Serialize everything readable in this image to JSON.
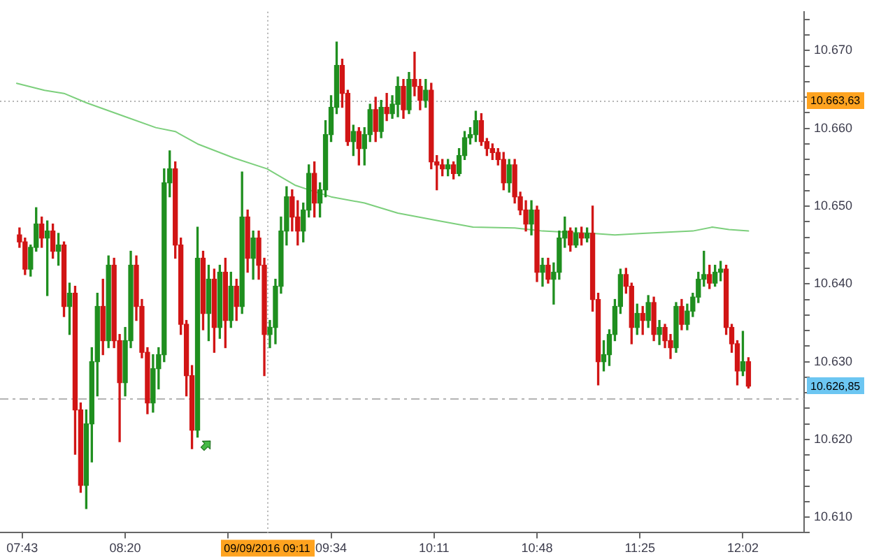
{
  "chart_data": {
    "type": "candlestick",
    "series": [
      {
        "x": [
          "2016-09-09T07:42",
          "2016-09-09T07:44",
          "2016-09-09T07:46",
          "2016-09-09T07:48",
          "2016-09-09T07:50",
          "2016-09-09T07:52",
          "2016-09-09T07:54",
          "2016-09-09T07:56",
          "2016-09-09T07:58",
          "2016-09-09T08:00",
          "2016-09-09T08:02",
          "2016-09-09T08:04",
          "2016-09-09T08:06",
          "2016-09-09T08:08",
          "2016-09-09T08:10",
          "2016-09-09T08:12",
          "2016-09-09T08:14",
          "2016-09-09T08:16",
          "2016-09-09T08:18",
          "2016-09-09T08:20",
          "2016-09-09T08:22",
          "2016-09-09T08:24",
          "2016-09-09T08:26",
          "2016-09-09T08:28",
          "2016-09-09T08:30",
          "2016-09-09T08:32",
          "2016-09-09T08:34",
          "2016-09-09T08:36",
          "2016-09-09T08:38",
          "2016-09-09T08:40",
          "2016-09-09T08:42",
          "2016-09-09T08:44",
          "2016-09-09T08:46",
          "2016-09-09T08:48",
          "2016-09-09T08:50",
          "2016-09-09T08:52",
          "2016-09-09T08:54",
          "2016-09-09T08:56",
          "2016-09-09T08:58",
          "2016-09-09T09:00",
          "2016-09-09T09:02",
          "2016-09-09T09:04",
          "2016-09-09T09:06",
          "2016-09-09T09:08",
          "2016-09-09T09:10",
          "2016-09-09T09:12",
          "2016-09-09T09:14",
          "2016-09-09T09:16",
          "2016-09-09T09:18",
          "2016-09-09T09:20",
          "2016-09-09T09:22",
          "2016-09-09T09:24",
          "2016-09-09T09:26",
          "2016-09-09T09:28",
          "2016-09-09T09:30",
          "2016-09-09T09:32",
          "2016-09-09T09:34",
          "2016-09-09T09:36",
          "2016-09-09T09:38",
          "2016-09-09T09:40",
          "2016-09-09T09:42",
          "2016-09-09T09:44",
          "2016-09-09T09:46",
          "2016-09-09T09:48",
          "2016-09-09T09:50",
          "2016-09-09T09:52",
          "2016-09-09T09:54",
          "2016-09-09T09:56",
          "2016-09-09T09:58",
          "2016-09-09T10:00",
          "2016-09-09T10:02",
          "2016-09-09T10:04",
          "2016-09-09T10:06",
          "2016-09-09T10:08",
          "2016-09-09T10:10",
          "2016-09-09T10:12",
          "2016-09-09T10:14",
          "2016-09-09T10:16",
          "2016-09-09T10:18",
          "2016-09-09T10:20",
          "2016-09-09T10:22",
          "2016-09-09T10:24",
          "2016-09-09T10:26",
          "2016-09-09T10:28",
          "2016-09-09T10:30",
          "2016-09-09T10:32",
          "2016-09-09T10:34",
          "2016-09-09T10:36",
          "2016-09-09T10:38",
          "2016-09-09T10:40",
          "2016-09-09T10:42",
          "2016-09-09T10:44",
          "2016-09-09T10:46",
          "2016-09-09T10:48",
          "2016-09-09T10:50",
          "2016-09-09T10:52",
          "2016-09-09T10:54",
          "2016-09-09T10:56",
          "2016-09-09T10:58",
          "2016-09-09T11:00",
          "2016-09-09T11:02",
          "2016-09-09T11:04",
          "2016-09-09T11:06",
          "2016-09-09T11:08",
          "2016-09-09T11:10",
          "2016-09-09T11:12",
          "2016-09-09T11:14",
          "2016-09-09T11:16",
          "2016-09-09T11:18",
          "2016-09-09T11:20",
          "2016-09-09T11:22",
          "2016-09-09T11:24",
          "2016-09-09T11:26",
          "2016-09-09T11:28",
          "2016-09-09T11:30",
          "2016-09-09T11:32",
          "2016-09-09T11:34",
          "2016-09-09T11:36",
          "2016-09-09T11:38",
          "2016-09-09T11:40",
          "2016-09-09T11:42",
          "2016-09-09T11:44",
          "2016-09-09T11:46",
          "2016-09-09T11:48",
          "2016-09-09T11:50",
          "2016-09-09T11:52",
          "2016-09-09T11:54",
          "2016-09-09T11:56",
          "2016-09-09T11:58",
          "2016-09-09T12:00",
          "2016-09-09T12:02",
          "2016-09-09T12:04"
        ],
        "ohlc": [
          [
            10646.3,
            10647.2,
            10644.7,
            10645.4
          ],
          [
            10645.4,
            10645.9,
            10641.2,
            10641.9
          ],
          [
            10641.9,
            10645.0,
            10641.0,
            10644.7
          ],
          [
            10644.7,
            10649.8,
            10644.2,
            10647.7
          ],
          [
            10647.7,
            10648.6,
            10644.7,
            10645.9
          ],
          [
            10645.9,
            10648.1,
            10638.5,
            10646.8
          ],
          [
            10646.8,
            10647.7,
            10643.3,
            10644.2
          ],
          [
            10644.2,
            10646.5,
            10642.4,
            10645.0
          ],
          [
            10645.0,
            10645.4,
            10635.8,
            10637.1
          ],
          [
            10637.1,
            10640.1,
            10633.5,
            10638.8
          ],
          [
            10638.8,
            10639.7,
            10618.1,
            10623.8
          ],
          [
            10623.8,
            10624.7,
            10613.2,
            10614.1
          ],
          [
            10614.1,
            10623.8,
            10611.1,
            10622.0
          ],
          [
            10622.0,
            10631.8,
            10617.1,
            10630.0
          ],
          [
            10630.0,
            10638.8,
            10625.6,
            10637.1
          ],
          [
            10637.1,
            10640.6,
            10630.9,
            10632.7
          ],
          [
            10632.7,
            10643.6,
            10631.8,
            10642.4
          ],
          [
            10642.4,
            10643.3,
            10631.8,
            10632.7
          ],
          [
            10632.7,
            10633.5,
            10619.7,
            10627.3
          ],
          [
            10627.3,
            10634.4,
            10625.6,
            10632.7
          ],
          [
            10632.7,
            10644.2,
            10631.8,
            10642.4
          ],
          [
            10642.4,
            10643.6,
            10635.3,
            10637.1
          ],
          [
            10637.1,
            10638.0,
            10630.5,
            10631.2
          ],
          [
            10631.2,
            10631.8,
            10623.3,
            10624.7
          ],
          [
            10624.7,
            10630.9,
            10623.5,
            10629.1
          ],
          [
            10629.1,
            10631.8,
            10626.5,
            10630.9
          ],
          [
            10630.9,
            10654.8,
            10630.0,
            10653.0
          ],
          [
            10653.0,
            10657.1,
            10651.2,
            10654.8
          ],
          [
            10654.8,
            10655.7,
            10643.3,
            10645.0
          ],
          [
            10645.0,
            10645.9,
            10633.5,
            10634.8
          ],
          [
            10634.8,
            10635.3,
            10625.6,
            10628.2
          ],
          [
            10628.2,
            10629.5,
            10618.8,
            10621.2
          ],
          [
            10621.2,
            10647.3,
            10620.3,
            10643.3
          ],
          [
            10643.3,
            10644.2,
            10634.1,
            10636.2
          ],
          [
            10636.2,
            10642.4,
            10632.7,
            10640.6
          ],
          [
            10640.6,
            10641.9,
            10631.2,
            10634.4
          ],
          [
            10634.4,
            10642.4,
            10633.0,
            10641.5
          ],
          [
            10641.5,
            10643.3,
            10631.8,
            10635.3
          ],
          [
            10635.3,
            10641.5,
            10634.4,
            10639.7
          ],
          [
            10639.7,
            10640.6,
            10635.3,
            10637.1
          ],
          [
            10637.1,
            10654.4,
            10636.2,
            10648.6
          ],
          [
            10648.6,
            10649.5,
            10641.5,
            10643.3
          ],
          [
            10643.3,
            10646.8,
            10640.6,
            10645.9
          ],
          [
            10645.9,
            10646.8,
            10640.6,
            10642.4
          ],
          [
            10642.4,
            10643.3,
            10628.2,
            10633.5
          ],
          [
            10633.5,
            10635.3,
            10631.8,
            10634.4
          ],
          [
            10634.4,
            10640.6,
            10632.3,
            10639.7
          ],
          [
            10639.7,
            10648.6,
            10638.8,
            10646.8
          ],
          [
            10646.8,
            10652.5,
            10645.0,
            10651.2
          ],
          [
            10651.2,
            10652.1,
            10646.8,
            10648.6
          ],
          [
            10648.6,
            10650.7,
            10645.0,
            10646.8
          ],
          [
            10646.8,
            10650.4,
            10645.4,
            10649.5
          ],
          [
            10649.5,
            10655.3,
            10648.6,
            10654.2
          ],
          [
            10654.2,
            10655.7,
            10648.6,
            10650.4
          ],
          [
            10650.4,
            10653.0,
            10648.6,
            10652.1
          ],
          [
            10652.1,
            10661.0,
            10651.2,
            10659.2
          ],
          [
            10659.2,
            10664.2,
            10658.3,
            10662.7
          ],
          [
            10662.7,
            10671.1,
            10661.9,
            10668.1
          ],
          [
            10668.1,
            10668.9,
            10662.7,
            10664.5
          ],
          [
            10664.5,
            10664.9,
            10657.8,
            10658.3
          ],
          [
            10658.3,
            10660.4,
            10656.5,
            10659.6
          ],
          [
            10659.6,
            10660.1,
            10655.3,
            10657.4
          ],
          [
            10657.4,
            10660.1,
            10655.3,
            10659.2
          ],
          [
            10659.2,
            10663.1,
            10658.3,
            10662.4
          ],
          [
            10662.4,
            10664.0,
            10658.3,
            10659.6
          ],
          [
            10659.6,
            10663.6,
            10658.8,
            10662.7
          ],
          [
            10662.7,
            10664.5,
            10661.0,
            10661.9
          ],
          [
            10661.9,
            10664.2,
            10661.3,
            10663.1
          ],
          [
            10663.1,
            10666.6,
            10661.5,
            10665.4
          ],
          [
            10665.4,
            10666.3,
            10661.3,
            10662.4
          ],
          [
            10662.4,
            10667.2,
            10661.9,
            10666.3
          ],
          [
            10666.3,
            10669.8,
            10664.2,
            10665.4
          ],
          [
            10665.4,
            10666.3,
            10662.4,
            10663.6
          ],
          [
            10663.6,
            10666.3,
            10662.7,
            10664.9
          ],
          [
            10664.9,
            10665.8,
            10654.8,
            10655.7
          ],
          [
            10655.7,
            10656.5,
            10652.1,
            10655.3
          ],
          [
            10655.3,
            10656.0,
            10653.9,
            10654.8
          ],
          [
            10654.8,
            10656.0,
            10653.9,
            10655.3
          ],
          [
            10655.3,
            10655.7,
            10653.5,
            10654.2
          ],
          [
            10654.2,
            10657.4,
            10653.9,
            10656.5
          ],
          [
            10656.5,
            10659.6,
            10656.0,
            10658.8
          ],
          [
            10658.8,
            10660.1,
            10658.0,
            10659.2
          ],
          [
            10659.2,
            10662.2,
            10658.3,
            10661.0
          ],
          [
            10661.0,
            10661.9,
            10657.8,
            10658.3
          ],
          [
            10658.3,
            10658.7,
            10656.5,
            10657.4
          ],
          [
            10657.4,
            10658.0,
            10656.0,
            10656.9
          ],
          [
            10656.9,
            10657.4,
            10655.3,
            10656.0
          ],
          [
            10656.0,
            10656.9,
            10652.1,
            10653.0
          ],
          [
            10653.0,
            10656.0,
            10651.8,
            10655.3
          ],
          [
            10655.3,
            10656.0,
            10650.4,
            10651.2
          ],
          [
            10651.2,
            10651.8,
            10648.9,
            10649.5
          ],
          [
            10649.5,
            10650.7,
            10646.8,
            10647.7
          ],
          [
            10647.7,
            10650.7,
            10646.3,
            10649.5
          ],
          [
            10649.5,
            10650.0,
            10640.3,
            10641.5
          ],
          [
            10641.5,
            10643.3,
            10639.7,
            10642.4
          ],
          [
            10642.4,
            10643.3,
            10640.1,
            10640.6
          ],
          [
            10640.6,
            10642.7,
            10637.4,
            10641.5
          ],
          [
            10641.5,
            10646.8,
            10640.6,
            10645.9
          ],
          [
            10645.9,
            10648.6,
            10644.7,
            10646.8
          ],
          [
            10646.8,
            10647.2,
            10644.2,
            10645.0
          ],
          [
            10645.0,
            10647.2,
            10644.7,
            10646.5
          ],
          [
            10646.5,
            10647.3,
            10645.0,
            10645.9
          ],
          [
            10645.9,
            10647.2,
            10645.4,
            10646.5
          ],
          [
            10646.5,
            10650.0,
            10636.5,
            10638.0
          ],
          [
            10638.0,
            10638.8,
            10627.0,
            10630.0
          ],
          [
            10630.0,
            10632.7,
            10628.8,
            10630.9
          ],
          [
            10630.9,
            10634.1,
            10629.5,
            10633.5
          ],
          [
            10633.5,
            10638.0,
            10632.7,
            10637.1
          ],
          [
            10637.1,
            10641.9,
            10636.2,
            10641.2
          ],
          [
            10641.2,
            10642.0,
            10638.8,
            10639.7
          ],
          [
            10639.7,
            10640.1,
            10632.3,
            10634.4
          ],
          [
            10634.4,
            10637.4,
            10633.5,
            10636.2
          ],
          [
            10636.2,
            10637.1,
            10633.5,
            10635.3
          ],
          [
            10635.3,
            10638.5,
            10634.4,
            10637.6
          ],
          [
            10637.6,
            10638.3,
            10632.7,
            10633.5
          ],
          [
            10633.5,
            10635.3,
            10632.2,
            10634.4
          ],
          [
            10634.4,
            10634.8,
            10631.8,
            10632.7
          ],
          [
            10632.7,
            10633.5,
            10630.4,
            10631.8
          ],
          [
            10631.8,
            10637.6,
            10631.2,
            10637.1
          ],
          [
            10637.1,
            10638.0,
            10634.1,
            10634.8
          ],
          [
            10634.8,
            10637.4,
            10634.1,
            10636.5
          ],
          [
            10636.5,
            10638.8,
            10635.8,
            10638.3
          ],
          [
            10638.3,
            10641.5,
            10637.6,
            10640.6
          ],
          [
            10640.6,
            10644.2,
            10639.7,
            10641.2
          ],
          [
            10641.2,
            10642.4,
            10639.4,
            10640.1
          ],
          [
            10640.1,
            10642.4,
            10639.7,
            10641.5
          ],
          [
            10641.5,
            10642.9,
            10640.4,
            10641.9
          ],
          [
            10641.9,
            10642.4,
            10633.5,
            10634.4
          ],
          [
            10634.4,
            10634.8,
            10631.2,
            10632.3
          ],
          [
            10632.3,
            10632.7,
            10627.0,
            10628.8
          ],
          [
            10628.8,
            10633.9,
            10628.2,
            10630.0
          ],
          [
            10630.0,
            10630.5,
            10626.6,
            10626.85
          ]
        ],
        "colors": [
          "#d11515",
          "#d11515",
          "#1f8f1f",
          "#1f8f1f",
          "#d11515",
          "#1f8f1f",
          "#d11515",
          "#1f8f1f",
          "#d11515",
          "#1f8f1f",
          "#d11515",
          "#d11515",
          "#1f8f1f",
          "#1f8f1f",
          "#1f8f1f",
          "#d11515",
          "#1f8f1f",
          "#d11515",
          "#d11515",
          "#1f8f1f",
          "#1f8f1f",
          "#d11515",
          "#d11515",
          "#d11515",
          "#1f8f1f",
          "#1f8f1f",
          "#1f8f1f",
          "#1f8f1f",
          "#d11515",
          "#d11515",
          "#d11515",
          "#d11515",
          "#1f8f1f",
          "#d11515",
          "#1f8f1f",
          "#d11515",
          "#1f8f1f",
          "#d11515",
          "#1f8f1f",
          "#d11515",
          "#1f8f1f",
          "#d11515",
          "#1f8f1f",
          "#d11515",
          "#d11515",
          "#1f8f1f",
          "#1f8f1f",
          "#1f8f1f",
          "#1f8f1f",
          "#d11515",
          "#d11515",
          "#1f8f1f",
          "#1f8f1f",
          "#d11515",
          "#1f8f1f",
          "#1f8f1f",
          "#1f8f1f",
          "#1f8f1f",
          "#d11515",
          "#d11515",
          "#1f8f1f",
          "#d11515",
          "#1f8f1f",
          "#1f8f1f",
          "#d11515",
          "#1f8f1f",
          "#d11515",
          "#1f8f1f",
          "#1f8f1f",
          "#d11515",
          "#1f8f1f",
          "#d11515",
          "#d11515",
          "#1f8f1f",
          "#d11515",
          "#d11515",
          "#d11515",
          "#1f8f1f",
          "#d11515",
          "#1f8f1f",
          "#1f8f1f",
          "#1f8f1f",
          "#1f8f1f",
          "#d11515",
          "#d11515",
          "#d11515",
          "#d11515",
          "#d11515",
          "#1f8f1f",
          "#d11515",
          "#d11515",
          "#d11515",
          "#1f8f1f",
          "#d11515",
          "#1f8f1f",
          "#d11515",
          "#1f8f1f",
          "#1f8f1f",
          "#1f8f1f",
          "#d11515",
          "#1f8f1f",
          "#d11515",
          "#1f8f1f",
          "#d11515",
          "#d11515",
          "#1f8f1f",
          "#1f8f1f",
          "#1f8f1f",
          "#1f8f1f",
          "#d11515",
          "#d11515",
          "#1f8f1f",
          "#d11515",
          "#1f8f1f",
          "#d11515",
          "#1f8f1f",
          "#d11515",
          "#d11515",
          "#1f8f1f",
          "#d11515",
          "#1f8f1f",
          "#1f8f1f",
          "#1f8f1f",
          "#1f8f1f",
          "#d11515",
          "#1f8f1f",
          "#1f8f1f",
          "#d11515",
          "#d11515",
          "#d11515",
          "#1f8f1f",
          "#d11515"
        ]
      },
      {
        "type": "line",
        "color": "#7ccf7c",
        "x": [
          "2016-09-09T07:41",
          "2016-09-09T07:51",
          "2016-09-09T07:58",
          "2016-09-09T08:06",
          "2016-09-09T08:20",
          "2016-09-09T08:31",
          "2016-09-09T08:38",
          "2016-09-09T08:46",
          "2016-09-09T08:59",
          "2016-09-09T09:11",
          "2016-09-09T09:21",
          "2016-09-09T09:26",
          "2016-09-09T09:34",
          "2016-09-09T09:46",
          "2016-09-09T09:58",
          "2016-09-09T10:13",
          "2016-09-09T10:25",
          "2016-09-09T10:40",
          "2016-09-09T10:50",
          "2016-09-09T11:01",
          "2016-09-09T11:08",
          "2016-09-09T11:16",
          "2016-09-09T11:26",
          "2016-09-09T11:44",
          "2016-09-09T11:51",
          "2016-09-09T11:57",
          "2016-09-09T12:04"
        ],
        "values": [
          10665.8,
          10664.9,
          10664.5,
          10663.3,
          10661.5,
          10660.1,
          10659.6,
          10658.0,
          10656.2,
          10654.8,
          10652.7,
          10652.1,
          10651.2,
          10650.4,
          10649.1,
          10648.1,
          10647.3,
          10647.2,
          10646.8,
          10646.6,
          10646.5,
          10646.3,
          10646.5,
          10646.8,
          10647.3,
          10647.0,
          10646.8
        ]
      }
    ],
    "xlim": [
      "2016-09-09T07:35",
      "2016-09-09T12:24"
    ],
    "xticks": [
      {
        "value": "2016-09-09T07:43",
        "label": "07:43"
      },
      {
        "value": "2016-09-09T08:20",
        "label": "08:20"
      },
      {
        "value": "2016-09-09T08:57",
        "label": null
      },
      {
        "value": "2016-09-09T09:34",
        "label": "09:34"
      },
      {
        "value": "2016-09-09T10:11",
        "label": "10:11"
      },
      {
        "value": "2016-09-09T10:48",
        "label": "10:48"
      },
      {
        "value": "2016-09-09T11:25",
        "label": "11:25"
      },
      {
        "value": "2016-09-09T12:02",
        "label": "12:02"
      }
    ],
    "ylim": [
      10608,
      10675
    ],
    "yticks": [
      {
        "value": 10608,
        "label": null
      },
      {
        "value": 10610,
        "label": "10.610"
      },
      {
        "value": 10612,
        "label": null
      },
      {
        "value": 10614,
        "label": null
      },
      {
        "value": 10616,
        "label": null
      },
      {
        "value": 10618,
        "label": null
      },
      {
        "value": 10620,
        "label": "10.620"
      },
      {
        "value": 10622,
        "label": null
      },
      {
        "value": 10624,
        "label": null
      },
      {
        "value": 10626,
        "label": null
      },
      {
        "value": 10628,
        "label": null
      },
      {
        "value": 10630,
        "label": "10.630"
      },
      {
        "value": 10632,
        "label": null
      },
      {
        "value": 10634,
        "label": null
      },
      {
        "value": 10636,
        "label": null
      },
      {
        "value": 10638,
        "label": null
      },
      {
        "value": 10640,
        "label": "10.640"
      },
      {
        "value": 10642,
        "label": null
      },
      {
        "value": 10644,
        "label": null
      },
      {
        "value": 10646,
        "label": null
      },
      {
        "value": 10648,
        "label": null
      },
      {
        "value": 10650,
        "label": "10.650"
      },
      {
        "value": 10652,
        "label": null
      },
      {
        "value": 10654,
        "label": null
      },
      {
        "value": 10656,
        "label": null
      },
      {
        "value": 10658,
        "label": null
      },
      {
        "value": 10660,
        "label": "10.660"
      },
      {
        "value": 10662,
        "label": null
      },
      {
        "value": 10664,
        "label": null
      },
      {
        "value": 10666,
        "label": null
      },
      {
        "value": 10668,
        "label": null
      },
      {
        "value": 10670,
        "label": "10.670"
      },
      {
        "value": 10672,
        "label": null
      },
      {
        "value": 10674,
        "label": null
      }
    ],
    "ref_lines": [
      {
        "axis": "x",
        "value": "2016-09-09T09:11",
        "label": "09/09/2016 09:11",
        "color": "#b4b4b4",
        "line_style": "dotted"
      },
      {
        "axis": "y",
        "value": 10663.63,
        "label": "10.663,63",
        "color": "#b4b4b4",
        "line_style": "dotted"
      },
      {
        "axis": "y",
        "value": 10625.2,
        "color": "#b4b4b4",
        "line_style": "dashed"
      }
    ],
    "annotations": [
      "10.626,85"
    ]
  }
}
